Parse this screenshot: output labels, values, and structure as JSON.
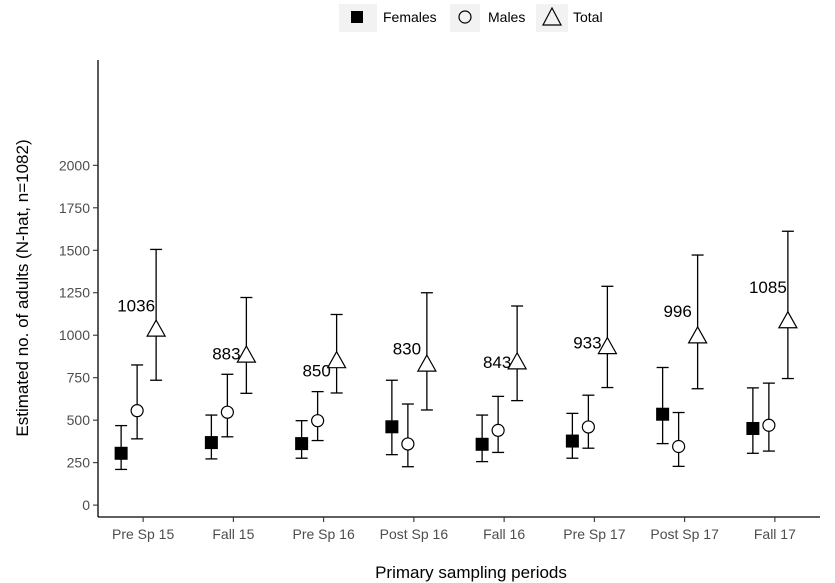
{
  "chart_data": {
    "type": "scatter",
    "xlabel": "Primary sampling periods",
    "ylabel": "Estimated no. of adults (N-hat, n=1082)",
    "ylim": [
      -70,
      2620
    ],
    "yticks": [
      0,
      250,
      500,
      750,
      1000,
      1250,
      1500,
      1750,
      2000
    ],
    "grid": false,
    "legend_position": "top",
    "categories": [
      "Pre Sp 15",
      "Fall 15",
      "Pre Sp 16",
      "Post Sp 16",
      "Fall 16",
      "Pre Sp 17",
      "Post Sp 17",
      "Fall 17"
    ],
    "series": [
      {
        "name": "Females",
        "marker": "filled-square",
        "values": [
          305,
          368,
          362,
          461,
          358,
          377,
          535,
          451
        ],
        "lower": [
          210,
          272,
          276,
          297,
          256,
          276,
          362,
          305
        ],
        "upper": [
          468,
          530,
          497,
          735,
          530,
          540,
          810,
          690
        ]
      },
      {
        "name": "Males",
        "marker": "open-circle",
        "values": [
          556,
          547,
          497,
          360,
          440,
          460,
          345,
          470
        ],
        "lower": [
          390,
          402,
          380,
          226,
          310,
          335,
          228,
          318
        ],
        "upper": [
          825,
          770,
          668,
          595,
          640,
          647,
          545,
          718
        ]
      },
      {
        "name": "Total",
        "marker": "open-triangle",
        "values": [
          1036,
          883,
          850,
          830,
          843,
          933,
          996,
          1085
        ],
        "lower": [
          735,
          658,
          660,
          560,
          615,
          692,
          685,
          745
        ],
        "upper": [
          1505,
          1222,
          1122,
          1250,
          1172,
          1288,
          1472,
          1612
        ]
      }
    ],
    "annotations": [
      "1036",
      "883",
      "850",
      "830",
      "843",
      "933",
      "996",
      "1085"
    ]
  }
}
